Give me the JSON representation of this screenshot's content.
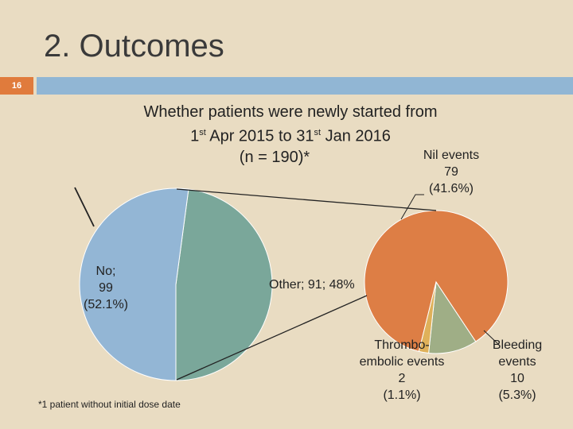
{
  "slide": {
    "title": "2. Outcomes",
    "number": "16"
  },
  "heading": {
    "line1": "Whether patients were newly started from",
    "line2_a": "1",
    "line2_sup1": "st",
    "line2_b": " Apr 2015 to 31",
    "line2_sup2": "st",
    "line2_c": " Jan 2016",
    "line3": "(n = 190)*"
  },
  "footnote": "*1 patient without initial dose date",
  "colors": {
    "no": "#93b6d5",
    "other": "#7aa79a",
    "nil_events": "#dd7e45",
    "thromboembolic": "#dfb15a",
    "bleeding": "#9fae86"
  },
  "chart_data": [
    {
      "type": "pie",
      "slices": [
        {
          "label": "No",
          "value": 99,
          "percent": 52.1,
          "text_lines": [
            "No;",
            "99",
            "(52.1%)"
          ]
        },
        {
          "label": "Other",
          "value": 91,
          "percent": 48,
          "text": "Other; 91; 48%"
        }
      ]
    },
    {
      "type": "pie",
      "slices": [
        {
          "label": "Nil events",
          "value": 79,
          "percent": 41.6,
          "text_lines": [
            "Nil events",
            "79",
            "(41.6%)"
          ]
        },
        {
          "label": "Thrombo-embolic events",
          "value": 2,
          "percent": 1.1,
          "text_lines": [
            "Thrombo-",
            "embolic events",
            "2",
            "(1.1%)"
          ]
        },
        {
          "label": "Bleeding events",
          "value": 10,
          "percent": 5.3,
          "text_lines": [
            "Bleeding",
            "events",
            "10",
            "(5.3%)"
          ]
        }
      ]
    }
  ]
}
